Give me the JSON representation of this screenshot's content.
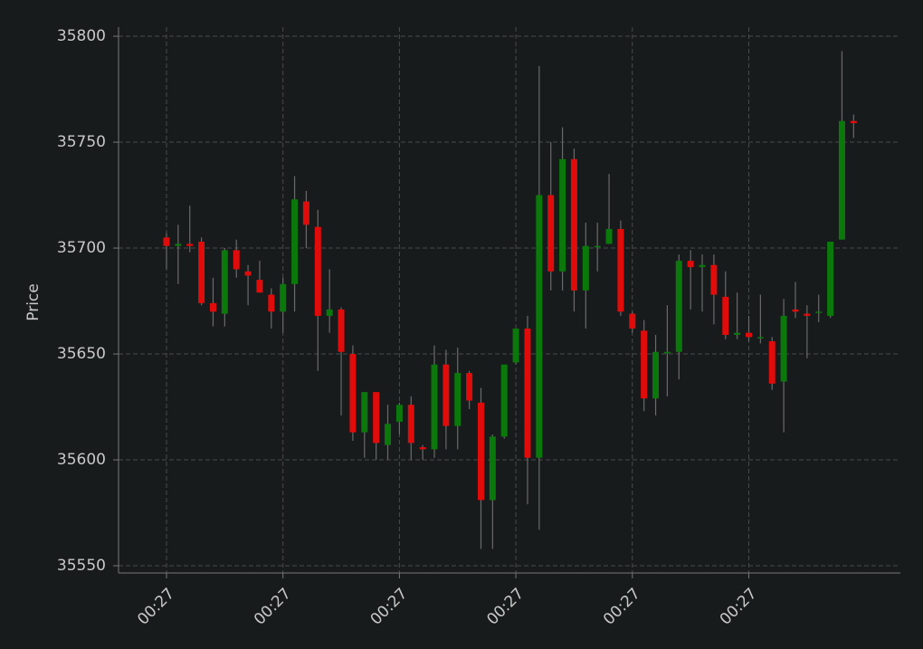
{
  "chart_data": {
    "type": "candlestick",
    "y_label": "Price",
    "categories": [
      "00:27",
      null,
      null,
      null,
      null,
      null,
      null,
      null,
      null,
      null,
      "00:27",
      null,
      null,
      null,
      null,
      null,
      null,
      null,
      null,
      null,
      "00:27",
      null,
      null,
      null,
      null,
      null,
      null,
      null,
      null,
      null,
      "00:27",
      null,
      null,
      null,
      null,
      null,
      null,
      null,
      null,
      null,
      "00:27",
      null,
      null,
      null,
      null,
      null,
      null,
      null,
      null,
      null,
      "00:27",
      null,
      null,
      null,
      null,
      null,
      null,
      null,
      null,
      null
    ],
    "open": [
      35705,
      35701,
      35702,
      35703,
      35674,
      35669,
      35699,
      35689,
      35685,
      35678,
      35670,
      35683,
      35722,
      35710,
      35668,
      35671,
      35650,
      35613,
      35632,
      35607,
      35618,
      35626,
      35606,
      35605,
      35645,
      35616,
      35641,
      35627,
      35581,
      35611,
      35646,
      35662,
      35601,
      35725,
      35689,
      35742,
      35680,
      35701,
      35702,
      35709,
      35669,
      35661,
      35629,
      35651,
      35651,
      35694,
      35691,
      35692,
      35677,
      35659,
      35660,
      35658,
      35656,
      35637,
      35671,
      35669,
      35670,
      35668,
      35704,
      35760
    ],
    "high": [
      35707,
      35711,
      35720,
      35705,
      35686,
      35700,
      35704,
      35692,
      35694,
      35681,
      35686,
      35734,
      35727,
      35718,
      35690,
      35672,
      35654,
      35632,
      35632,
      35626,
      35627,
      35630,
      35607,
      35654,
      35652,
      35653,
      35642,
      35634,
      35612,
      35645,
      35662,
      35668,
      35786,
      35750,
      35757,
      35747,
      35712,
      35712,
      35735,
      35713,
      35670,
      35666,
      35659,
      35673,
      35697,
      35699,
      35697,
      35697,
      35689,
      35679,
      35668,
      35678,
      35658,
      35676,
      35684,
      35673,
      35678,
      35703,
      35793,
      35763
    ],
    "low": [
      35690,
      35683,
      35698,
      35673,
      35663,
      35663,
      35686,
      35673,
      35679,
      35662,
      35660,
      35670,
      35700,
      35642,
      35660,
      35621,
      35609,
      35601,
      35600,
      35600,
      35612,
      35600,
      35600,
      35601,
      35605,
      35605,
      35624,
      35558,
      35558,
      35610,
      35645,
      35579,
      35567,
      35680,
      35680,
      35670,
      35662,
      35689,
      35702,
      35668,
      35660,
      35623,
      35621,
      35630,
      35638,
      35671,
      35670,
      35664,
      35657,
      35657,
      35656,
      35655,
      35633,
      35613,
      35667,
      35648,
      35665,
      35667,
      35704,
      35752
    ],
    "close": [
      35701,
      35702,
      35701,
      35674,
      35670,
      35699,
      35690,
      35687,
      35679,
      35670,
      35683,
      35723,
      35711,
      35668,
      35671,
      35651,
      35613,
      35632,
      35608,
      35617,
      35626,
      35608,
      35605,
      35645,
      35616,
      35641,
      35628,
      35581,
      35611,
      35645,
      35662,
      35601,
      35725,
      35689,
      35742,
      35680,
      35701,
      35701,
      35709,
      35670,
      35662,
      35629,
      35651,
      35651,
      35694,
      35691,
      35692,
      35678,
      35659,
      35660,
      35658,
      35658,
      35636,
      35668,
      35670,
      35668,
      35670,
      35703,
      35760,
      35759
    ],
    "up_color": "#0b780b",
    "down_color": "#e00b0b",
    "wick_color": "#6a6a6a",
    "ylim": [
      35546.6,
      35804.3
    ],
    "yticks": [
      35550,
      35600,
      35650,
      35700,
      35750,
      35800
    ],
    "grid": true
  }
}
